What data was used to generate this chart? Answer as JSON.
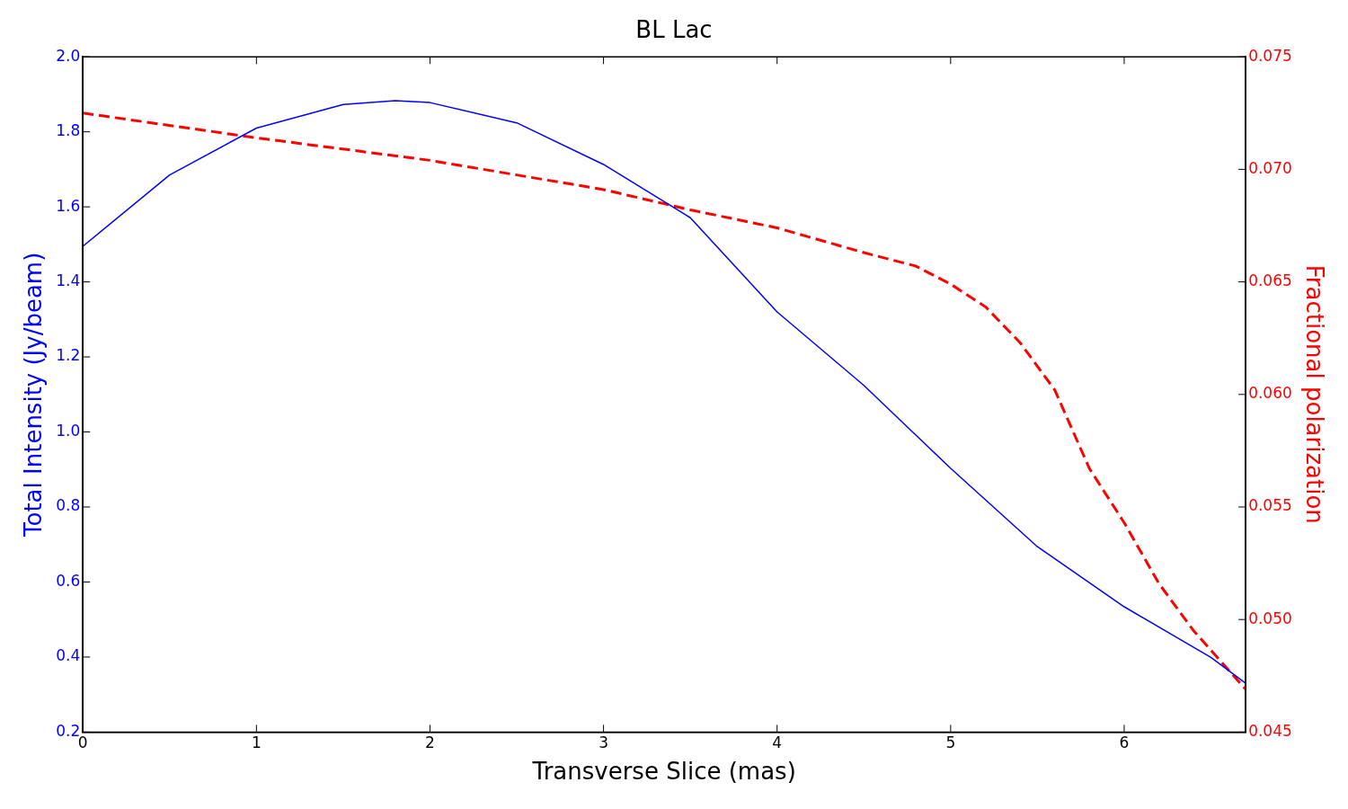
{
  "chart_data": {
    "type": "line",
    "title": "BL Lac",
    "xlabel": "Transverse Slice (mas)",
    "ylabel": "Total Intensity (Jy/beam)",
    "y2label": "Fractional polarization",
    "xlim": [
      0,
      6.7
    ],
    "xticks": [
      0,
      1,
      2,
      3,
      4,
      5,
      6
    ],
    "ylim": [
      0.2,
      2.0
    ],
    "yticks": [
      {
        "value": 0.2,
        "label": "0.2"
      },
      {
        "value": 0.4,
        "label": "0.4"
      },
      {
        "value": 0.6,
        "label": "0.6"
      },
      {
        "value": 0.8,
        "label": "0.8"
      },
      {
        "value": 1.0,
        "label": "1.0"
      },
      {
        "value": 1.2,
        "label": "1.2"
      },
      {
        "value": 1.4,
        "label": "1.4"
      },
      {
        "value": 1.6,
        "label": "1.6"
      },
      {
        "value": 1.8,
        "label": "1.8"
      },
      {
        "value": 2.0,
        "label": "2.0"
      }
    ],
    "y2lim": [
      0.045,
      0.075
    ],
    "y2ticks": [
      {
        "value": 0.045,
        "label": "0.045"
      },
      {
        "value": 0.05,
        "label": "0.050"
      },
      {
        "value": 0.055,
        "label": "0.055"
      },
      {
        "value": 0.06,
        "label": "0.060"
      },
      {
        "value": 0.065,
        "label": "0.065"
      },
      {
        "value": 0.07,
        "label": "0.070"
      },
      {
        "value": 0.075,
        "label": "0.075"
      }
    ],
    "marker": "none",
    "legend": false,
    "series": [
      {
        "color": "#0000ff",
        "line_style": "solid",
        "x": [
          0,
          0.5,
          1,
          1.5,
          1.8,
          2,
          2.5,
          3,
          3.5,
          4,
          4.5,
          5,
          5.5,
          6,
          6.5,
          6.7
        ],
        "values": [
          1.495,
          1.685,
          1.81,
          1.873,
          1.883,
          1.878,
          1.824,
          1.713,
          1.571,
          1.32,
          1.124,
          0.903,
          0.694,
          0.534,
          0.399,
          0.33
        ]
      },
      {
        "color": "#ff0000",
        "line_style": "dashed",
        "axis": "y2",
        "x": [
          0,
          1,
          2,
          3,
          3.5,
          4,
          4.5,
          4.8,
          5,
          5.2,
          5.4,
          5.6,
          5.8,
          6,
          6.2,
          6.4,
          6.7
        ],
        "values": [
          0.0725,
          0.0714,
          0.0704,
          0.0691,
          0.0682,
          0.0674,
          0.0663,
          0.0657,
          0.0649,
          0.0639,
          0.0623,
          0.0602,
          0.0567,
          0.0543,
          0.0516,
          0.0495,
          0.0469
        ]
      }
    ]
  }
}
